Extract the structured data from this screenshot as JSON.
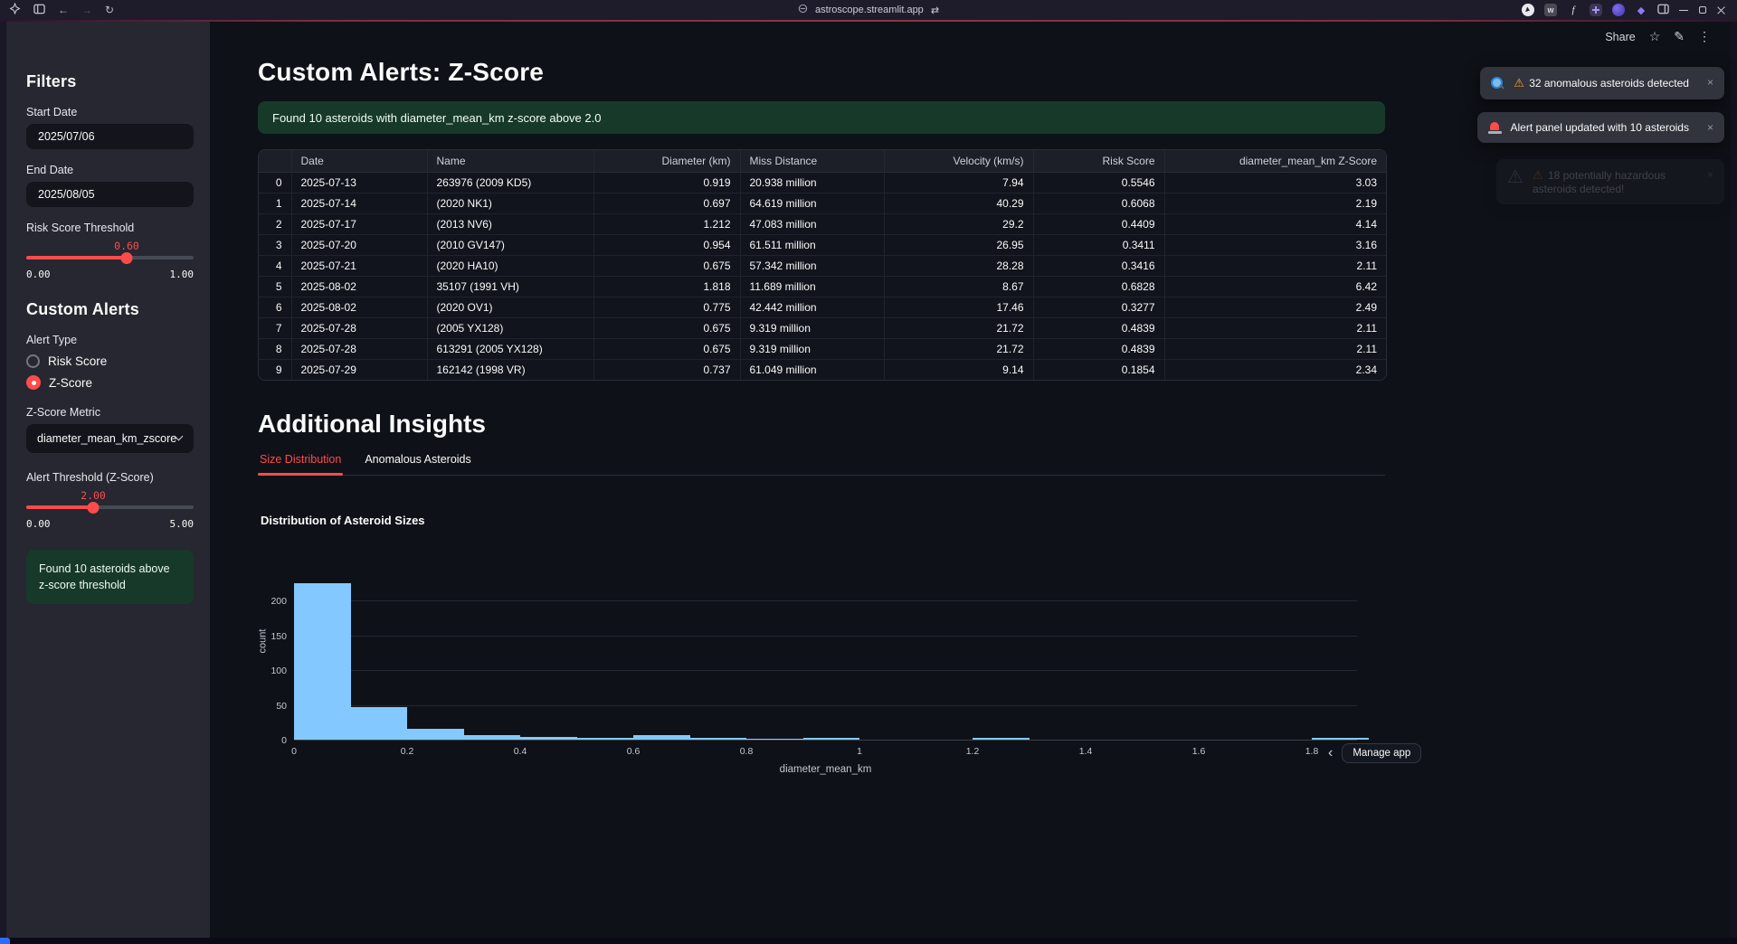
{
  "theme": {
    "accent": "#ff4b4b",
    "success_bg": "#17392a",
    "app_bg": "#0e1117",
    "sidebar_bg": "#262730",
    "toast_bg": "#31333d",
    "bar_color": "#83c9ff"
  },
  "browser": {
    "url": "astroscope.streamlit.app",
    "extensions": {
      "wayback_label": "w",
      "font_label": "f"
    }
  },
  "app_toolbar": {
    "share_label": "Share"
  },
  "sidebar": {
    "filters_heading": "Filters",
    "start_date": {
      "label": "Start Date",
      "value": "2025/07/06"
    },
    "end_date": {
      "label": "End Date",
      "value": "2025/08/05"
    },
    "risk_slider": {
      "label": "Risk Score Threshold",
      "value": "0.60",
      "min": "0.00",
      "max": "1.00",
      "pct": 60
    },
    "custom_alerts_heading": "Custom Alerts",
    "alert_type": {
      "label": "Alert Type",
      "options": [
        {
          "label": "Risk Score",
          "selected": false
        },
        {
          "label": "Z-Score",
          "selected": true
        }
      ]
    },
    "zscore_metric": {
      "label": "Z-Score Metric",
      "value": "diameter_mean_km_zscore"
    },
    "alert_threshold": {
      "label": "Alert Threshold (Z-Score)",
      "value": "2.00",
      "min": "0.00",
      "max": "5.00",
      "pct": 40
    },
    "success_message": "Found 10 asteroids above z-score threshold"
  },
  "main": {
    "title": "Custom Alerts: Z-Score",
    "banner": "Found 10 asteroids with diameter_mean_km z-score above 2.0",
    "table": {
      "columns": [
        "",
        "Date",
        "Name",
        "Diameter (km)",
        "Miss Distance",
        "Velocity (km/s)",
        "Risk Score",
        "diameter_mean_km Z-Score"
      ],
      "rows": [
        [
          "0",
          "2025-07-13",
          "263976 (2009 KD5)",
          "0.919",
          "20.938 million",
          "7.94",
          "0.5546",
          "3.03"
        ],
        [
          "1",
          "2025-07-14",
          "(2020 NK1)",
          "0.697",
          "64.619 million",
          "40.29",
          "0.6068",
          "2.19"
        ],
        [
          "2",
          "2025-07-17",
          "(2013 NV6)",
          "1.212",
          "47.083 million",
          "29.2",
          "0.4409",
          "4.14"
        ],
        [
          "3",
          "2025-07-20",
          "(2010 GV147)",
          "0.954",
          "61.511 million",
          "26.95",
          "0.3411",
          "3.16"
        ],
        [
          "4",
          "2025-07-21",
          "(2020 HA10)",
          "0.675",
          "57.342 million",
          "28.28",
          "0.3416",
          "2.11"
        ],
        [
          "5",
          "2025-08-02",
          "35107 (1991 VH)",
          "1.818",
          "11.689 million",
          "8.67",
          "0.6828",
          "6.42"
        ],
        [
          "6",
          "2025-08-02",
          "(2020 OV1)",
          "0.775",
          "42.442 million",
          "17.46",
          "0.3277",
          "2.49"
        ],
        [
          "7",
          "2025-07-28",
          "(2005 YX128)",
          "0.675",
          "9.319 million",
          "21.72",
          "0.4839",
          "2.11"
        ],
        [
          "8",
          "2025-07-28",
          "613291 (2005 YX128)",
          "0.675",
          "9.319 million",
          "21.72",
          "0.4839",
          "2.11"
        ],
        [
          "9",
          "2025-07-29",
          "162142 (1998 VR)",
          "0.737",
          "61.049 million",
          "9.14",
          "0.1854",
          "2.34"
        ]
      ]
    },
    "insights_title": "Additional Insights",
    "tabs": [
      {
        "label": "Size Distribution",
        "active": true
      },
      {
        "label": "Anomalous Asteroids",
        "active": false
      }
    ]
  },
  "chart_data": {
    "type": "bar",
    "title": "Distribution of Asteroid Sizes",
    "xlabel": "diameter_mean_km",
    "ylabel": "count",
    "legend": "none",
    "grid": "horizontal",
    "xlim": [
      0,
      1.88
    ],
    "ylim": [
      0,
      265
    ],
    "x_ticks": [
      0,
      0.2,
      0.4,
      0.6,
      0.8,
      1,
      1.2,
      1.4,
      1.6,
      1.8
    ],
    "y_ticks": [
      0,
      50,
      100,
      150,
      200
    ],
    "bin_width": 0.1,
    "bin_starts": [
      0,
      0.1,
      0.2,
      0.3,
      0.4,
      0.5,
      0.6,
      0.7,
      0.8,
      0.9,
      1.0,
      1.1,
      1.2,
      1.3,
      1.4,
      1.5,
      1.6,
      1.7,
      1.8
    ],
    "counts": [
      225,
      47,
      15,
      7,
      4,
      2,
      7,
      3,
      1,
      2,
      0,
      0,
      2,
      0,
      0,
      0,
      0,
      0,
      2
    ],
    "bar_color": "#83c9ff"
  },
  "toasts": [
    {
      "icon": "magnifier",
      "warning_prefix": true,
      "text": "32 anomalous asteroids detected",
      "faded": false
    },
    {
      "icon": "siren",
      "warning_prefix": false,
      "text": "Alert panel updated with 10 asteroids",
      "faded": false
    },
    {
      "icon": "warning",
      "warning_prefix": true,
      "text": "18 potentially hazardous asteroids detected!",
      "faded": true
    }
  ],
  "footer": {
    "manage_app_label": "Manage app"
  }
}
